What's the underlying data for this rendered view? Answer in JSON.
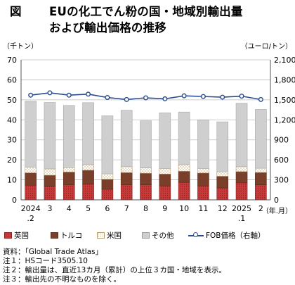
{
  "title": {
    "prefix": "図",
    "line1": "EUの化工でん粉の国・地域別輸出量",
    "line2": "および輸出価格の推移"
  },
  "colors": {
    "uk": "#c73a3a",
    "turkey": "#7a3f2a",
    "us": "#f2e4c4",
    "other": "#cfcfcf",
    "fob": "#2b4c8c",
    "grid": "#bdbdbd"
  },
  "chart_data": {
    "type": "bar",
    "stacked": true,
    "left_unit": "（千トン）",
    "right_unit": "（ユーロ/トン）",
    "x_unit": "（年.月）",
    "categories": [
      "2024\n.2",
      "3",
      "4",
      "5",
      "6",
      "7",
      "8",
      "9",
      "10",
      "11",
      "12",
      "2025\n.1",
      "2"
    ],
    "ylim": [
      0,
      70
    ],
    "y_ticks": [
      "0",
      "10",
      "20",
      "30",
      "40",
      "50",
      "60",
      "70"
    ],
    "y2lim": [
      0,
      2100
    ],
    "y2_ticks": [
      "0",
      "300",
      "600",
      "900",
      "1,200",
      "1,500",
      "1,800",
      "2,100"
    ],
    "grid": true,
    "legend_position": "bottom",
    "series": [
      {
        "name": "英国",
        "values": [
          7.3,
          6.8,
          7.5,
          8.0,
          5.3,
          7.6,
          7.5,
          7.0,
          8.8,
          7.0,
          6.0,
          8.5,
          7.5
        ]
      },
      {
        "name": "トルコ",
        "values": [
          6.2,
          5.5,
          6.4,
          6.8,
          5.0,
          6.0,
          5.8,
          5.9,
          5.5,
          6.4,
          5.8,
          5.6,
          6.2
        ]
      },
      {
        "name": "米国",
        "values": [
          2.8,
          3.2,
          2.2,
          2.8,
          2.7,
          3.0,
          2.7,
          2.8,
          3.3,
          2.3,
          2.2,
          2.5,
          2.1
        ]
      },
      {
        "name": "その他",
        "values": [
          33.0,
          33.2,
          31.1,
          31.0,
          29.0,
          28.2,
          23.5,
          27.8,
          26.3,
          24.3,
          25.0,
          31.7,
          29.4
        ]
      }
    ],
    "line": {
      "name": "FOB価格（右軸）",
      "values": [
        1570,
        1605,
        1570,
        1585,
        1535,
        1505,
        1530,
        1515,
        1560,
        1550,
        1540,
        1555,
        1505
      ]
    }
  },
  "notes": [
    "資料：「Global Trade Atlas」",
    "注１：HSコード3505.10",
    "注２：輸出量は、直近13カ月（累計）の上位３カ国・地域を表示。",
    "注３：輸出先の不明なものを除く。"
  ]
}
